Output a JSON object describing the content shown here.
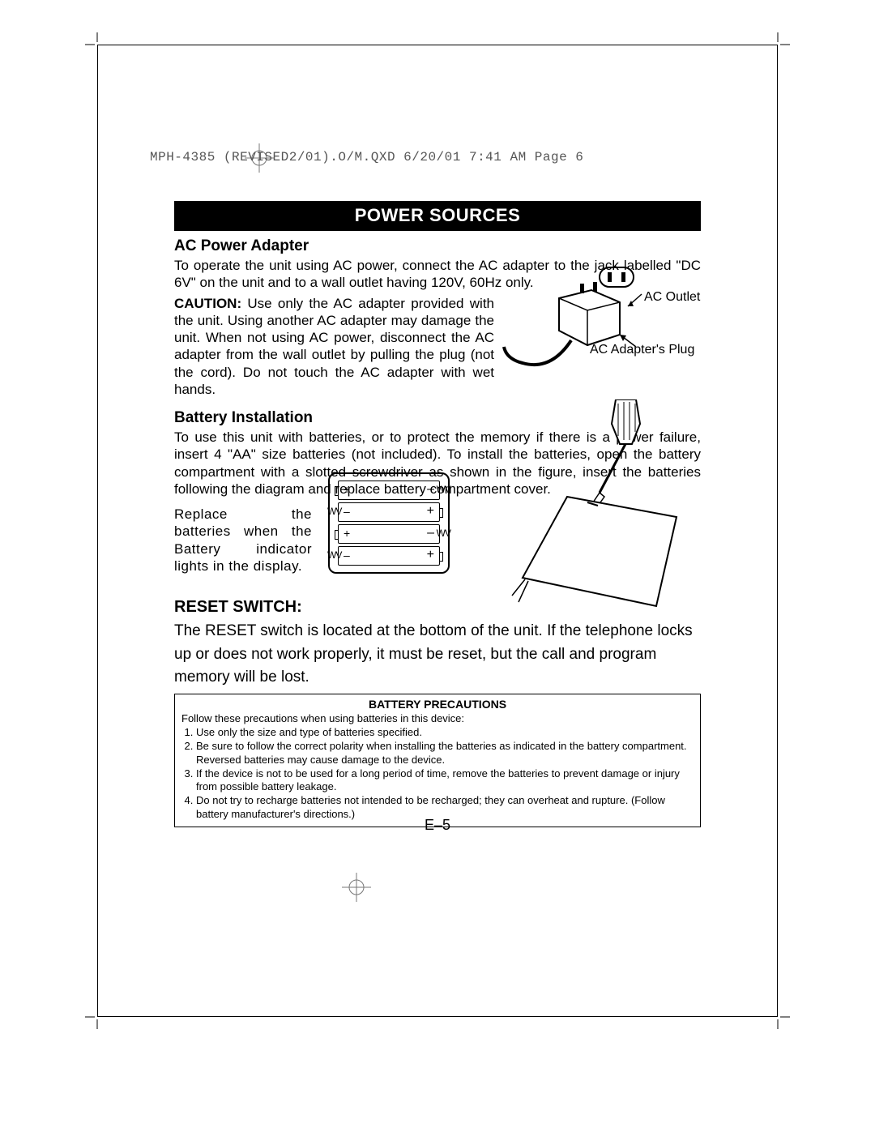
{
  "header": {
    "text": "MPH-4385 (REVISED2/01).O/M.QXD  6/20/01  7:41 AM  Page 6"
  },
  "banner": "POWER SOURCES",
  "section1": {
    "heading": "AC Power Adapter",
    "p1": "To operate the unit using AC power, connect the AC adapter to the jack labelled \"DC 6V\" on the unit and to a wall outlet having 120V, 60Hz only.",
    "caution_label": "CAUTION:",
    "p2": " Use only the AC adapter provided with the unit. Using another AC adapter may damage the unit. When not using AC power, disconnect the AC adapter from the wall outlet by pulling the plug (not the cord). Do not touch the AC adapter with wet hands.",
    "fig_label_outlet": "AC Outlet",
    "fig_label_plug": "AC Adapter's Plug"
  },
  "section2": {
    "heading": "Battery Installation",
    "p1": "To use this unit with batteries, or to protect the memory if there is a power failure, insert 4 \"AA\" size batteries (not included). To install the batteries, open the battery compartment with a slotted screwdriver as shown in the figure, insert the batteries following the diagram and replace battery compartment cover.",
    "p2": "Replace the batteries when the Battery indicator lights in the display.",
    "batt_rows": [
      {
        "left": "nub",
        "lsign": "+",
        "rsign": "–",
        "right": "spring"
      },
      {
        "left": "spring",
        "lsign": "–",
        "rsign": "+",
        "right": "nub"
      },
      {
        "left": "nub",
        "lsign": "+",
        "rsign": "–",
        "right": "spring"
      },
      {
        "left": "spring",
        "lsign": "–",
        "rsign": "+",
        "right": "nub"
      }
    ]
  },
  "section3": {
    "heading": "RESET SWITCH:",
    "text": "The RESET switch is located at the bottom of the unit. If the telephone locks up or does not work properly, it must be reset, but the call and program memory will be lost."
  },
  "precautions": {
    "title": "BATTERY PRECAUTIONS",
    "intro": "Follow these precautions when using batteries in this device:",
    "items": [
      "Use only the size and type of batteries specified.",
      "Be sure to follow the correct polarity when installing the batteries as indicated in the battery compartment. Reversed batteries may cause damage to the device.",
      "If the device is not to be used for a long period of time, remove the batteries to prevent damage or injury from possible battery leakage.",
      "Do not try to recharge batteries not intended to be recharged; they can overheat and rupture. (Follow battery manufacturer's directions.)"
    ]
  },
  "page_number": "E–5"
}
